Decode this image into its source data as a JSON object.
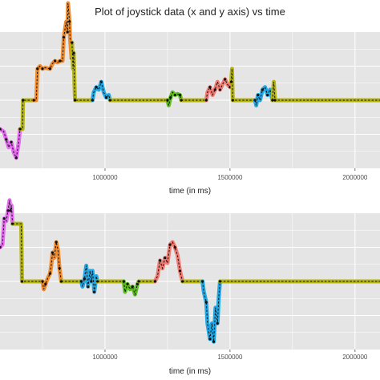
{
  "chart_data": {
    "title": "Plot of joystick data (x and y axis) vs time",
    "colors": {
      "panel_background": "#e5e5e5",
      "grid": "#ffffff",
      "baseline": "#b5b512",
      "segment_colors": [
        "#e76bf3",
        "#f08c2d",
        "#b5b512",
        "#21a9e6",
        "#5fbf22",
        "#f07b73"
      ],
      "dash": "#111111"
    },
    "panels": [
      {
        "type": "line",
        "xlabel": "time (in ms)",
        "ylabel": "",
        "xlim": [
          580000,
          2100000
        ],
        "x_ticks": [
          1000000,
          1500000,
          2000000
        ],
        "x_tick_labels": [
          "1000000",
          "1500000",
          "2000000"
        ],
        "ylim": [
          -1.3,
          1.3
        ],
        "grid": true,
        "series": [
          {
            "color_index": 0,
            "points": [
              [
                580000,
                -0.55
              ],
              [
                595000,
                -0.6
              ],
              [
                605000,
                -0.75
              ],
              [
                615000,
                -0.9
              ],
              [
                625000,
                -0.8
              ],
              [
                635000,
                -1.0
              ],
              [
                645000,
                -1.1
              ],
              [
                655000,
                -0.8
              ],
              [
                660000,
                -0.55
              ]
            ]
          },
          {
            "color_index": 2,
            "points": [
              [
                660000,
                -0.55
              ],
              [
                670000,
                -0.55
              ],
              [
                672000,
                0.0
              ],
              [
                715000,
                0.0
              ]
            ]
          },
          {
            "color_index": 1,
            "points": [
              [
                715000,
                0.0
              ],
              [
                725000,
                0.0
              ],
              [
                730000,
                0.6
              ],
              [
                740000,
                0.65
              ],
              [
                750000,
                0.6
              ],
              [
                760000,
                0.62
              ],
              [
                780000,
                0.6
              ],
              [
                790000,
                0.7
              ],
              [
                800000,
                0.75
              ],
              [
                810000,
                0.72
              ],
              [
                820000,
                0.75
              ],
              [
                830000,
                0.75
              ],
              [
                835000,
                1.2
              ],
              [
                845000,
                1.5
              ],
              [
                850000,
                1.3
              ],
              [
                852000,
                1.85
              ],
              [
                858000,
                1.5
              ],
              [
                860000,
                1.2
              ],
              [
                866000,
                0.8
              ],
              [
                868000,
                1.1
              ]
            ]
          },
          {
            "color_index": 2,
            "points": [
              [
                868000,
                1.1
              ],
              [
                872000,
                0.6
              ],
              [
                875000,
                0.9
              ],
              [
                878000,
                0.3
              ],
              [
                880000,
                0.0
              ],
              [
                950000,
                0.0
              ]
            ]
          },
          {
            "color_index": 3,
            "points": [
              [
                950000,
                0.0
              ],
              [
                955000,
                0.15
              ],
              [
                965000,
                0.25
              ],
              [
                975000,
                0.2
              ],
              [
                985000,
                0.35
              ],
              [
                995000,
                0.15
              ],
              [
                1005000,
                0.05
              ],
              [
                1015000,
                0.1
              ],
              [
                1020000,
                0.0
              ]
            ]
          },
          {
            "color_index": 2,
            "points": [
              [
                1020000,
                0.0
              ],
              [
                1250000,
                0.0
              ]
            ]
          },
          {
            "color_index": 4,
            "points": [
              [
                1250000,
                0.0
              ],
              [
                1255000,
                -0.1
              ],
              [
                1262000,
                0.05
              ],
              [
                1270000,
                0.15
              ],
              [
                1280000,
                0.1
              ],
              [
                1290000,
                0.12
              ],
              [
                1300000,
                0.1
              ],
              [
                1305000,
                0.0
              ]
            ]
          },
          {
            "color_index": 2,
            "points": [
              [
                1305000,
                0.0
              ],
              [
                1405000,
                0.0
              ]
            ]
          },
          {
            "color_index": 5,
            "points": [
              [
                1405000,
                0.0
              ],
              [
                1410000,
                0.15
              ],
              [
                1420000,
                0.25
              ],
              [
                1430000,
                0.1
              ],
              [
                1440000,
                0.2
              ],
              [
                1450000,
                0.35
              ],
              [
                1460000,
                0.2
              ],
              [
                1470000,
                0.3
              ],
              [
                1480000,
                0.4
              ],
              [
                1490000,
                0.3
              ],
              [
                1500000,
                0.25
              ],
              [
                1505000,
                0.35
              ]
            ]
          },
          {
            "color_index": 2,
            "points": [
              [
                1505000,
                0.35
              ],
              [
                1508000,
                0.6
              ],
              [
                1511000,
                0.0
              ],
              [
                1600000,
                0.0
              ]
            ]
          },
          {
            "color_index": 3,
            "points": [
              [
                1600000,
                0.0
              ],
              [
                1605000,
                -0.1
              ],
              [
                1612000,
                0.1
              ],
              [
                1620000,
                0.0
              ],
              [
                1630000,
                0.2
              ],
              [
                1640000,
                0.25
              ],
              [
                1650000,
                0.1
              ],
              [
                1660000,
                0.2
              ],
              [
                1670000,
                0.0
              ]
            ]
          },
          {
            "color_index": 2,
            "points": [
              [
                1670000,
                0.0
              ],
              [
                1675000,
                0.35
              ],
              [
                1680000,
                0.0
              ],
              [
                2100000,
                0.0
              ]
            ]
          }
        ]
      },
      {
        "type": "line",
        "xlabel": "time (in ms)",
        "ylabel": "",
        "xlim": [
          580000,
          2100000
        ],
        "x_ticks": [
          1000000,
          1500000,
          2000000
        ],
        "x_tick_labels": [
          "1000000",
          "1500000",
          "2000000"
        ],
        "ylim": [
          -1.3,
          1.3
        ],
        "grid": true,
        "series": [
          {
            "color_index": 0,
            "points": [
              [
                580000,
                0.65
              ],
              [
                590000,
                0.7
              ],
              [
                597000,
                1.2
              ],
              [
                605000,
                1.15
              ],
              [
                612000,
                1.35
              ],
              [
                618000,
                1.55
              ],
              [
                622000,
                1.35
              ],
              [
                626000,
                1.45
              ],
              [
                630000,
                1.1
              ]
            ]
          },
          {
            "color_index": 2,
            "points": [
              [
                630000,
                1.1
              ],
              [
                665000,
                1.1
              ],
              [
                668000,
                0.0
              ],
              [
                750000,
                0.0
              ]
            ]
          },
          {
            "color_index": 1,
            "points": [
              [
                750000,
                0.0
              ],
              [
                755000,
                -0.15
              ],
              [
                762000,
                -0.05
              ],
              [
                770000,
                0.05
              ],
              [
                780000,
                0.15
              ],
              [
                785000,
                0.3
              ],
              [
                790000,
                0.55
              ],
              [
                797000,
                0.45
              ],
              [
                805000,
                0.75
              ],
              [
                812000,
                0.6
              ],
              [
                818000,
                0.25
              ],
              [
                825000,
                0.0
              ]
            ]
          },
          {
            "color_index": 2,
            "points": [
              [
                825000,
                0.0
              ],
              [
                905000,
                0.0
              ]
            ]
          },
          {
            "color_index": 3,
            "points": [
              [
                905000,
                0.0
              ],
              [
                910000,
                -0.1
              ],
              [
                918000,
                0.05
              ],
              [
                925000,
                0.3
              ],
              [
                932000,
                -0.1
              ],
              [
                940000,
                0.2
              ],
              [
                945000,
                0.0
              ],
              [
                950000,
                0.2
              ],
              [
                957000,
                -0.2
              ],
              [
                965000,
                0.1
              ],
              [
                970000,
                0.0
              ]
            ]
          },
          {
            "color_index": 2,
            "points": [
              [
                970000,
                0.0
              ],
              [
                1075000,
                0.0
              ]
            ]
          },
          {
            "color_index": 4,
            "points": [
              [
                1075000,
                0.0
              ],
              [
                1080000,
                -0.2
              ],
              [
                1090000,
                -0.05
              ],
              [
                1100000,
                -0.15
              ],
              [
                1110000,
                -0.1
              ],
              [
                1120000,
                -0.25
              ],
              [
                1130000,
                -0.05
              ],
              [
                1135000,
                0.0
              ]
            ]
          },
          {
            "color_index": 2,
            "points": [
              [
                1135000,
                0.0
              ],
              [
                1200000,
                0.0
              ]
            ]
          },
          {
            "color_index": 5,
            "points": [
              [
                1200000,
                0.0
              ],
              [
                1210000,
                0.1
              ],
              [
                1220000,
                0.4
              ],
              [
                1230000,
                0.25
              ],
              [
                1240000,
                0.45
              ],
              [
                1250000,
                0.35
              ],
              [
                1260000,
                0.7
              ],
              [
                1270000,
                0.75
              ],
              [
                1280000,
                0.65
              ],
              [
                1290000,
                0.5
              ],
              [
                1300000,
                0.2
              ],
              [
                1310000,
                0.0
              ]
            ]
          },
          {
            "color_index": 2,
            "points": [
              [
                1310000,
                0.0
              ],
              [
                1390000,
                0.0
              ]
            ]
          },
          {
            "color_index": 3,
            "points": [
              [
                1390000,
                0.0
              ],
              [
                1395000,
                -0.2
              ],
              [
                1405000,
                -0.4
              ],
              [
                1410000,
                -0.8
              ],
              [
                1420000,
                -1.1
              ],
              [
                1428000,
                -0.8
              ],
              [
                1435000,
                -1.15
              ],
              [
                1442000,
                -0.5
              ],
              [
                1450000,
                -0.8
              ],
              [
                1455000,
                -0.3
              ],
              [
                1460000,
                0.0
              ]
            ]
          },
          {
            "color_index": 2,
            "points": [
              [
                1460000,
                0.0
              ],
              [
                2100000,
                0.0
              ]
            ]
          }
        ]
      }
    ]
  }
}
